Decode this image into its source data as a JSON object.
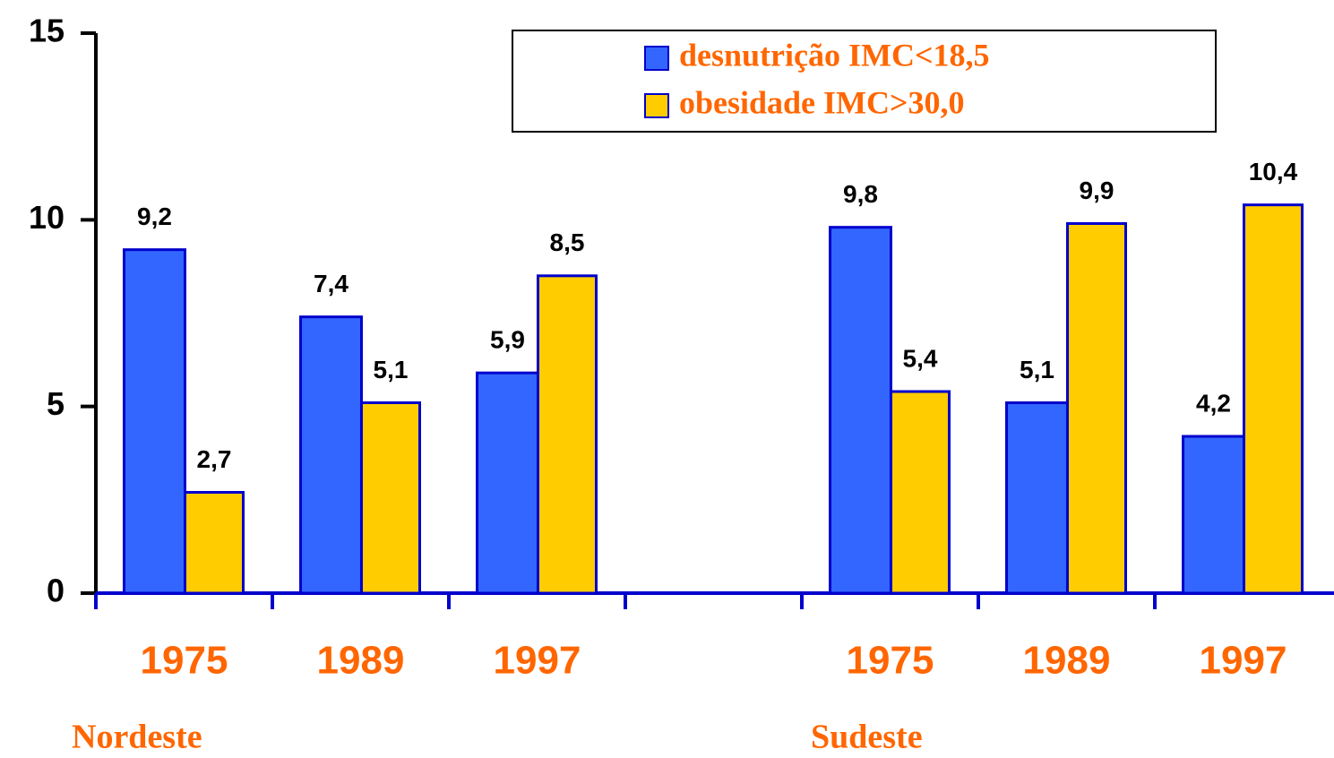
{
  "chart_data": {
    "type": "bar",
    "categories": [
      "1975",
      "1989",
      "1997",
      null,
      "1975",
      "1989",
      "1997"
    ],
    "group_labels": [
      "Nordeste",
      "Sudeste"
    ],
    "series": [
      {
        "name": "desnutrição IMC<18,5",
        "color": "#3366ff",
        "values": [
          9.2,
          7.4,
          5.9,
          null,
          9.8,
          5.1,
          4.2
        ],
        "value_labels": [
          "9,2",
          "7,4",
          "5,9",
          null,
          "9,8",
          "5,1",
          "4,2"
        ]
      },
      {
        "name": "obesidade IMC>30,0",
        "color": "#ffcc00",
        "values": [
          2.7,
          5.1,
          8.5,
          null,
          5.4,
          9.9,
          10.4
        ],
        "value_labels": [
          "2,7",
          "5,1",
          "8,5",
          null,
          "5,4",
          "9,9",
          "10,4"
        ]
      }
    ],
    "ylim": [
      0,
      15
    ],
    "yticks": [
      0,
      5,
      10,
      15
    ],
    "grid": false
  }
}
